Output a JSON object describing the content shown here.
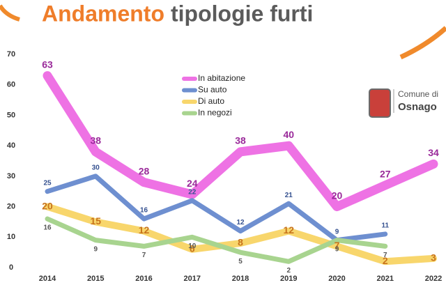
{
  "chart_data": {
    "type": "line",
    "title": [
      "Andamento",
      "tipologie furti"
    ],
    "categories": [
      "2014",
      "2015",
      "2016",
      "2017",
      "2018",
      "2019",
      "2020",
      "2021",
      "2022"
    ],
    "series": [
      {
        "name": "In abitazione",
        "color": "#ee72e4",
        "values": [
          63,
          38,
          28,
          24,
          38,
          40,
          20,
          27,
          34
        ]
      },
      {
        "name": "Su auto",
        "color": "#6e8fd0",
        "values": [
          25,
          30,
          16,
          22,
          12,
          21,
          9,
          11,
          null
        ]
      },
      {
        "name": "Di auto",
        "color": "#f8d66c",
        "values": [
          20,
          15,
          12,
          6,
          8,
          12,
          7,
          2,
          3
        ]
      },
      {
        "name": "In negozi",
        "color": "#a8d48f",
        "values": [
          16,
          9,
          7,
          10,
          5,
          2,
          9,
          7,
          null
        ]
      }
    ],
    "ylim": [
      0,
      70
    ],
    "yticks": [
      0,
      10,
      20,
      30,
      40,
      50,
      60,
      70
    ],
    "grid": false
  },
  "logo": {
    "line1": "Comune di",
    "line2": "Osnago"
  }
}
